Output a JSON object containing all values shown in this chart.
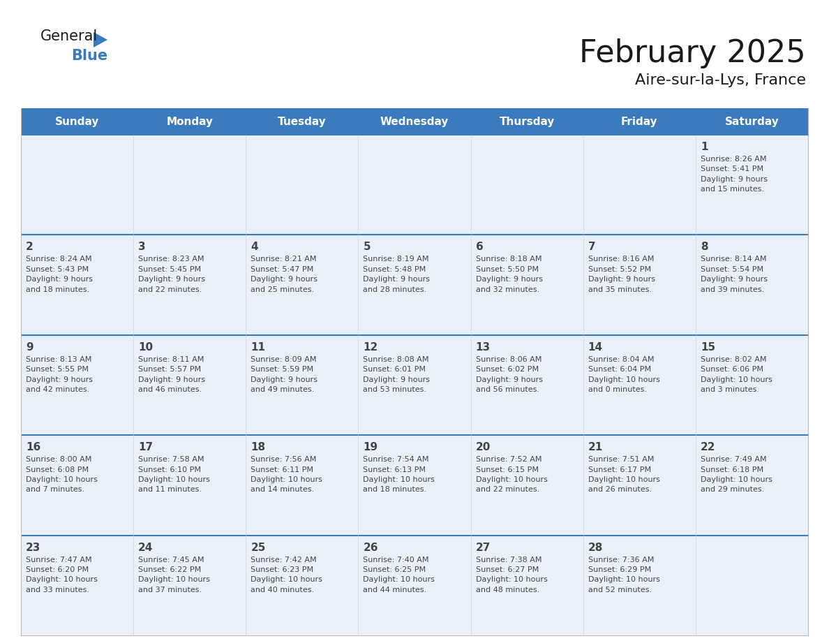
{
  "title": "February 2025",
  "subtitle": "Aire-sur-la-Lys, France",
  "header_color": "#3a7abf",
  "header_text_color": "#ffffff",
  "cell_bg_light": "#eaf0f7",
  "cell_bg_white": "#ffffff",
  "border_color": "#3a7abf",
  "row_border_color": "#3a7abf",
  "text_color": "#444444",
  "days_of_week": [
    "Sunday",
    "Monday",
    "Tuesday",
    "Wednesday",
    "Thursday",
    "Friday",
    "Saturday"
  ],
  "weeks": [
    [
      {
        "day": null,
        "info": null
      },
      {
        "day": null,
        "info": null
      },
      {
        "day": null,
        "info": null
      },
      {
        "day": null,
        "info": null
      },
      {
        "day": null,
        "info": null
      },
      {
        "day": null,
        "info": null
      },
      {
        "day": 1,
        "info": "Sunrise: 8:26 AM\nSunset: 5:41 PM\nDaylight: 9 hours\nand 15 minutes."
      }
    ],
    [
      {
        "day": 2,
        "info": "Sunrise: 8:24 AM\nSunset: 5:43 PM\nDaylight: 9 hours\nand 18 minutes."
      },
      {
        "day": 3,
        "info": "Sunrise: 8:23 AM\nSunset: 5:45 PM\nDaylight: 9 hours\nand 22 minutes."
      },
      {
        "day": 4,
        "info": "Sunrise: 8:21 AM\nSunset: 5:47 PM\nDaylight: 9 hours\nand 25 minutes."
      },
      {
        "day": 5,
        "info": "Sunrise: 8:19 AM\nSunset: 5:48 PM\nDaylight: 9 hours\nand 28 minutes."
      },
      {
        "day": 6,
        "info": "Sunrise: 8:18 AM\nSunset: 5:50 PM\nDaylight: 9 hours\nand 32 minutes."
      },
      {
        "day": 7,
        "info": "Sunrise: 8:16 AM\nSunset: 5:52 PM\nDaylight: 9 hours\nand 35 minutes."
      },
      {
        "day": 8,
        "info": "Sunrise: 8:14 AM\nSunset: 5:54 PM\nDaylight: 9 hours\nand 39 minutes."
      }
    ],
    [
      {
        "day": 9,
        "info": "Sunrise: 8:13 AM\nSunset: 5:55 PM\nDaylight: 9 hours\nand 42 minutes."
      },
      {
        "day": 10,
        "info": "Sunrise: 8:11 AM\nSunset: 5:57 PM\nDaylight: 9 hours\nand 46 minutes."
      },
      {
        "day": 11,
        "info": "Sunrise: 8:09 AM\nSunset: 5:59 PM\nDaylight: 9 hours\nand 49 minutes."
      },
      {
        "day": 12,
        "info": "Sunrise: 8:08 AM\nSunset: 6:01 PM\nDaylight: 9 hours\nand 53 minutes."
      },
      {
        "day": 13,
        "info": "Sunrise: 8:06 AM\nSunset: 6:02 PM\nDaylight: 9 hours\nand 56 minutes."
      },
      {
        "day": 14,
        "info": "Sunrise: 8:04 AM\nSunset: 6:04 PM\nDaylight: 10 hours\nand 0 minutes."
      },
      {
        "day": 15,
        "info": "Sunrise: 8:02 AM\nSunset: 6:06 PM\nDaylight: 10 hours\nand 3 minutes."
      }
    ],
    [
      {
        "day": 16,
        "info": "Sunrise: 8:00 AM\nSunset: 6:08 PM\nDaylight: 10 hours\nand 7 minutes."
      },
      {
        "day": 17,
        "info": "Sunrise: 7:58 AM\nSunset: 6:10 PM\nDaylight: 10 hours\nand 11 minutes."
      },
      {
        "day": 18,
        "info": "Sunrise: 7:56 AM\nSunset: 6:11 PM\nDaylight: 10 hours\nand 14 minutes."
      },
      {
        "day": 19,
        "info": "Sunrise: 7:54 AM\nSunset: 6:13 PM\nDaylight: 10 hours\nand 18 minutes."
      },
      {
        "day": 20,
        "info": "Sunrise: 7:52 AM\nSunset: 6:15 PM\nDaylight: 10 hours\nand 22 minutes."
      },
      {
        "day": 21,
        "info": "Sunrise: 7:51 AM\nSunset: 6:17 PM\nDaylight: 10 hours\nand 26 minutes."
      },
      {
        "day": 22,
        "info": "Sunrise: 7:49 AM\nSunset: 6:18 PM\nDaylight: 10 hours\nand 29 minutes."
      }
    ],
    [
      {
        "day": 23,
        "info": "Sunrise: 7:47 AM\nSunset: 6:20 PM\nDaylight: 10 hours\nand 33 minutes."
      },
      {
        "day": 24,
        "info": "Sunrise: 7:45 AM\nSunset: 6:22 PM\nDaylight: 10 hours\nand 37 minutes."
      },
      {
        "day": 25,
        "info": "Sunrise: 7:42 AM\nSunset: 6:23 PM\nDaylight: 10 hours\nand 40 minutes."
      },
      {
        "day": 26,
        "info": "Sunrise: 7:40 AM\nSunset: 6:25 PM\nDaylight: 10 hours\nand 44 minutes."
      },
      {
        "day": 27,
        "info": "Sunrise: 7:38 AM\nSunset: 6:27 PM\nDaylight: 10 hours\nand 48 minutes."
      },
      {
        "day": 28,
        "info": "Sunrise: 7:36 AM\nSunset: 6:29 PM\nDaylight: 10 hours\nand 52 minutes."
      },
      {
        "day": null,
        "info": null
      }
    ]
  ],
  "logo_text_general": "General",
  "logo_text_blue": "Blue",
  "logo_triangle_color": "#3a7abf",
  "logo_text_color": "#1a1a1a"
}
